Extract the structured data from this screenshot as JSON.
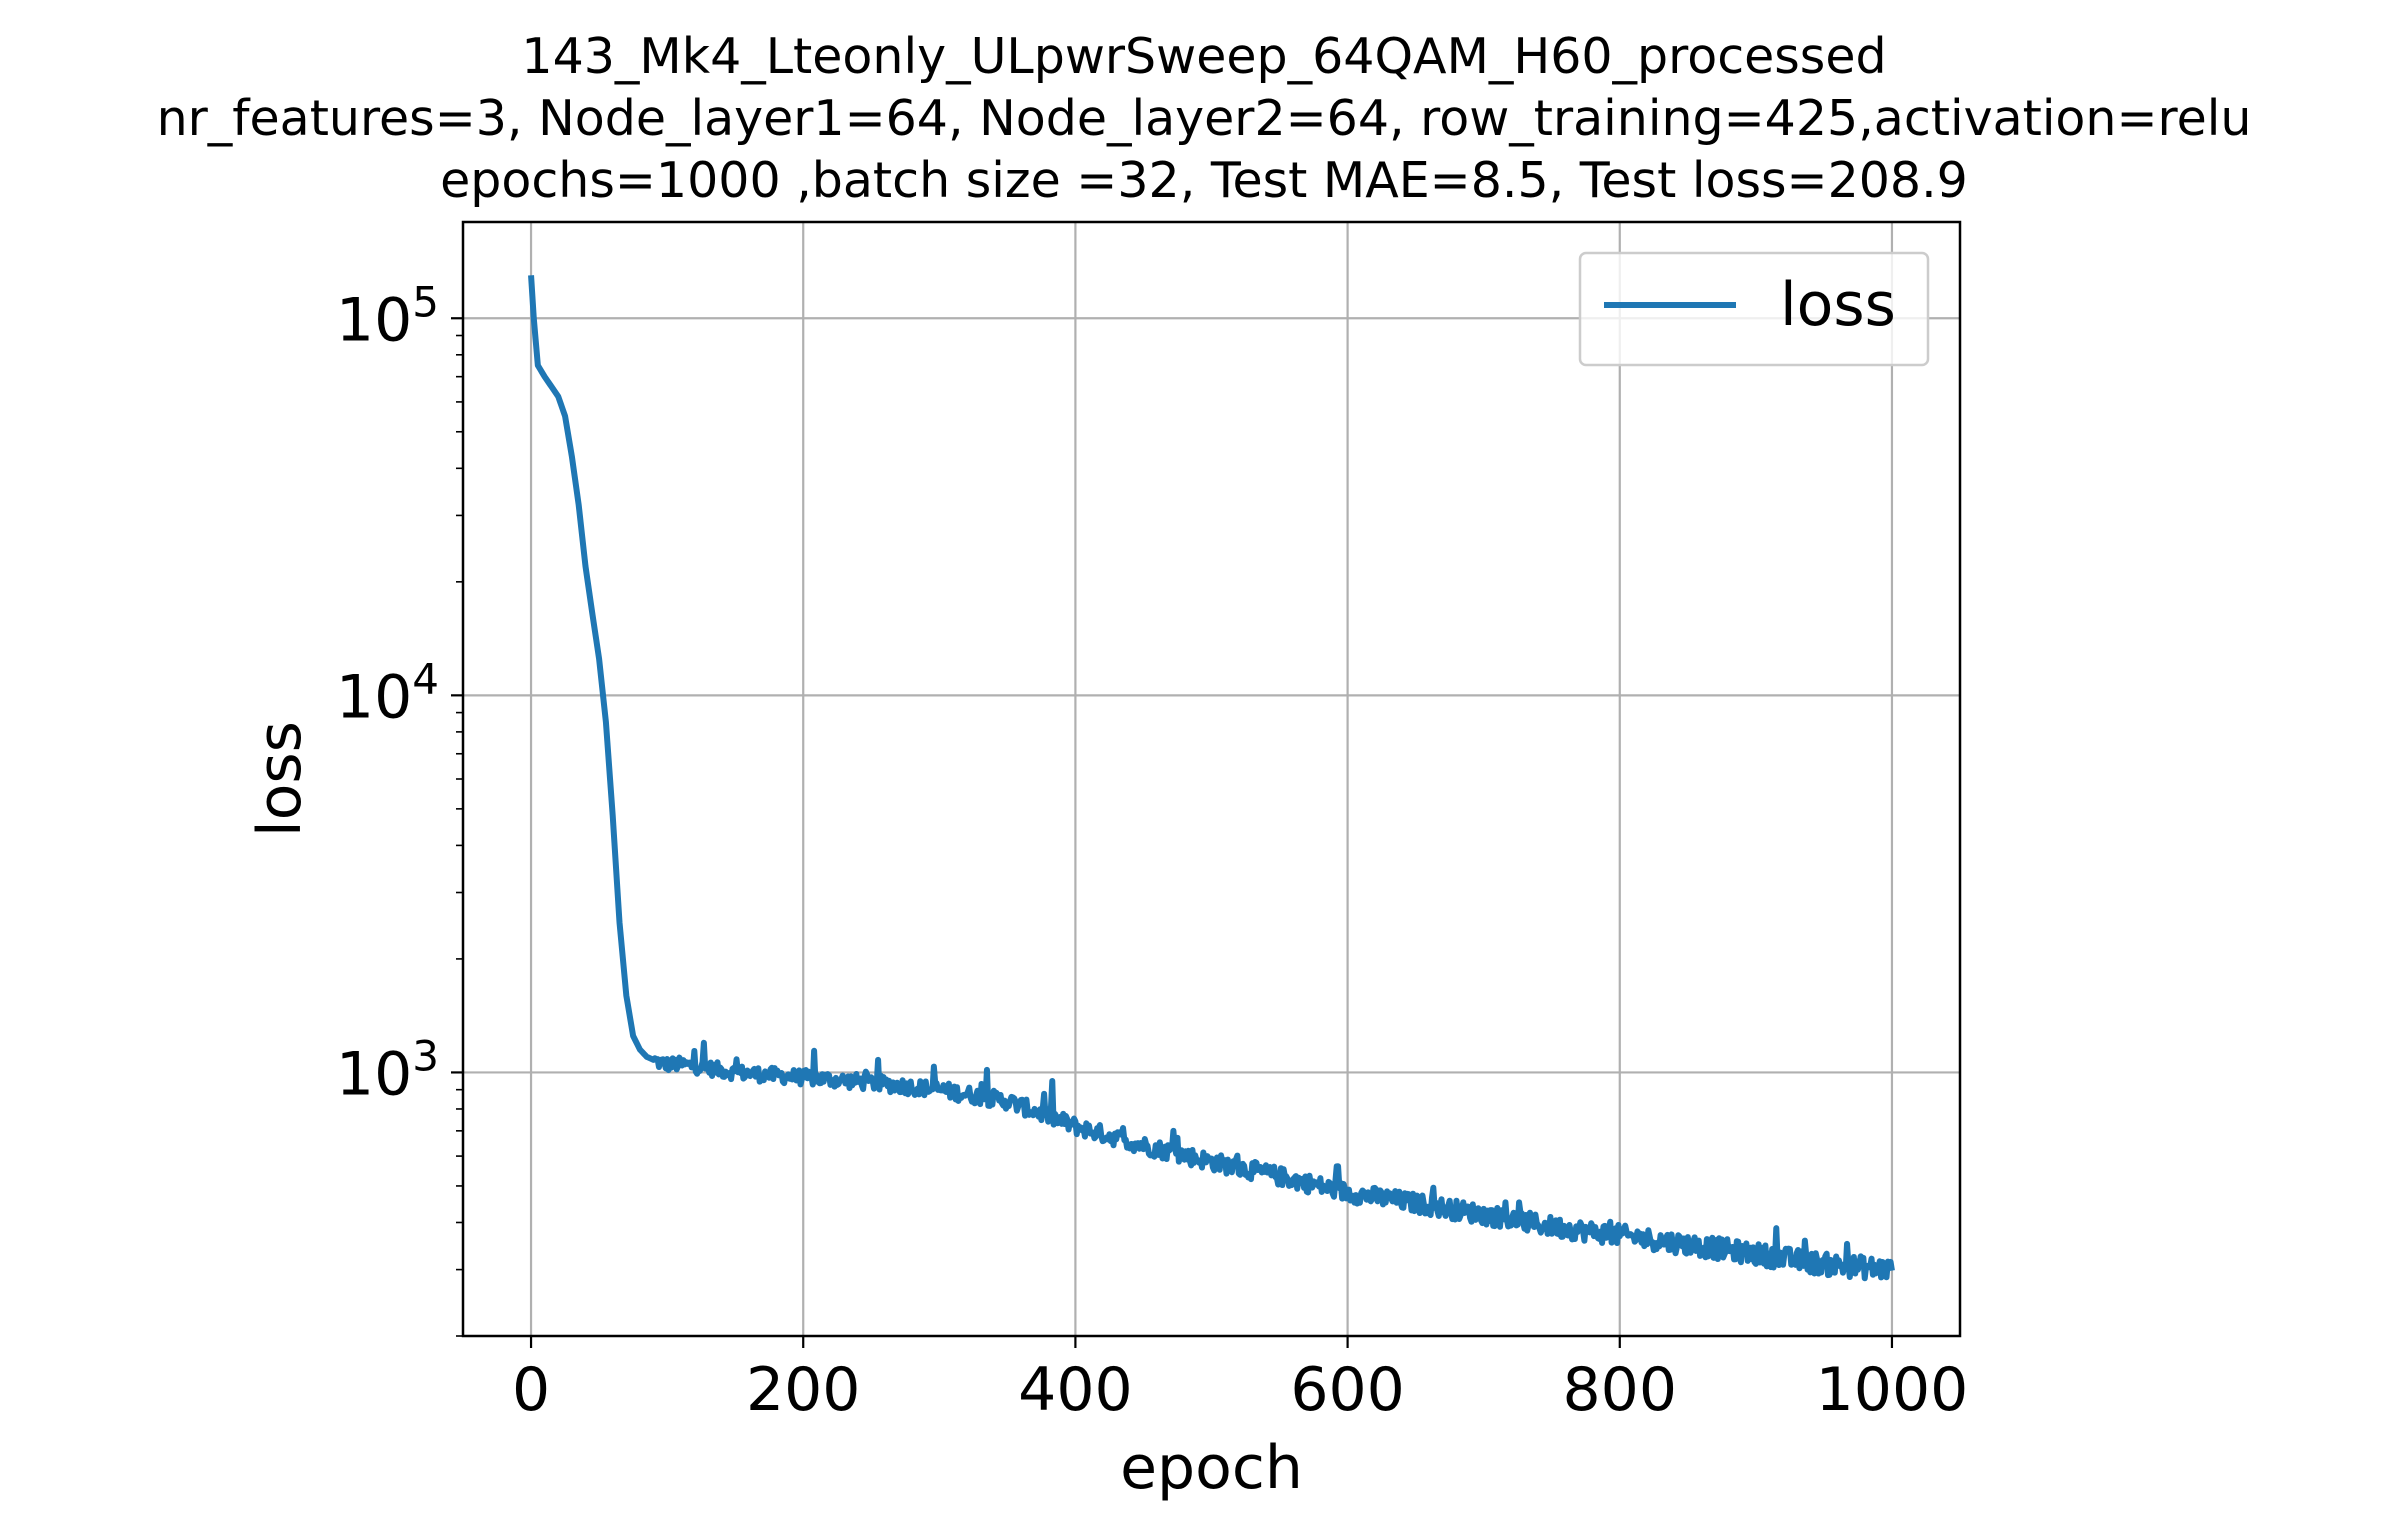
{
  "chart_data": {
    "type": "line",
    "title_lines": [
      "143_Mk4_Lteonly_ULpwrSweep_64QAM_H60_processed",
      "nr_features=3, Node_layer1=64, Node_layer2=64, row_training=425,activation=relu",
      "epochs=1000 ,batch size =32, Test MAE=8.5, Test loss=208.9"
    ],
    "xlabel": "epoch",
    "ylabel": "loss",
    "xlim": [
      -50,
      1050
    ],
    "ylim": [
      200,
      180000
    ],
    "yscale": "log",
    "grid": true,
    "legend_position": "upper-right",
    "x_ticks": [
      0,
      200,
      400,
      600,
      800,
      1000
    ],
    "x_tick_labels": [
      "0",
      "200",
      "400",
      "600",
      "800",
      "1000"
    ],
    "y_ticks": [
      1000,
      10000,
      100000
    ],
    "y_tick_labels": [
      {
        "base": "10",
        "exp": "3"
      },
      {
        "base": "10",
        "exp": "4"
      },
      {
        "base": "10",
        "exp": "5"
      }
    ],
    "series": [
      {
        "name": "loss",
        "color": "#1f77b4",
        "anchors_x": [
          0,
          2,
          5,
          10,
          20,
          25,
          30,
          35,
          40,
          45,
          50,
          55,
          60,
          65,
          70,
          75,
          80,
          85,
          90,
          95,
          100,
          110,
          120,
          150,
          200,
          250,
          300,
          350,
          400,
          450,
          500,
          550,
          600,
          650,
          700,
          750,
          800,
          850,
          900,
          950,
          1000
        ],
        "anchors_y": [
          130000,
          100000,
          75000,
          70000,
          62000,
          55000,
          43000,
          32000,
          22000,
          16500,
          12500,
          8500,
          4800,
          2500,
          1600,
          1250,
          1150,
          1100,
          1080,
          1060,
          1050,
          1050,
          1040,
          1000,
          970,
          940,
          900,
          840,
          720,
          640,
          580,
          530,
          480,
          450,
          420,
          390,
          370,
          350,
          330,
          310,
          300
        ]
      }
    ]
  }
}
